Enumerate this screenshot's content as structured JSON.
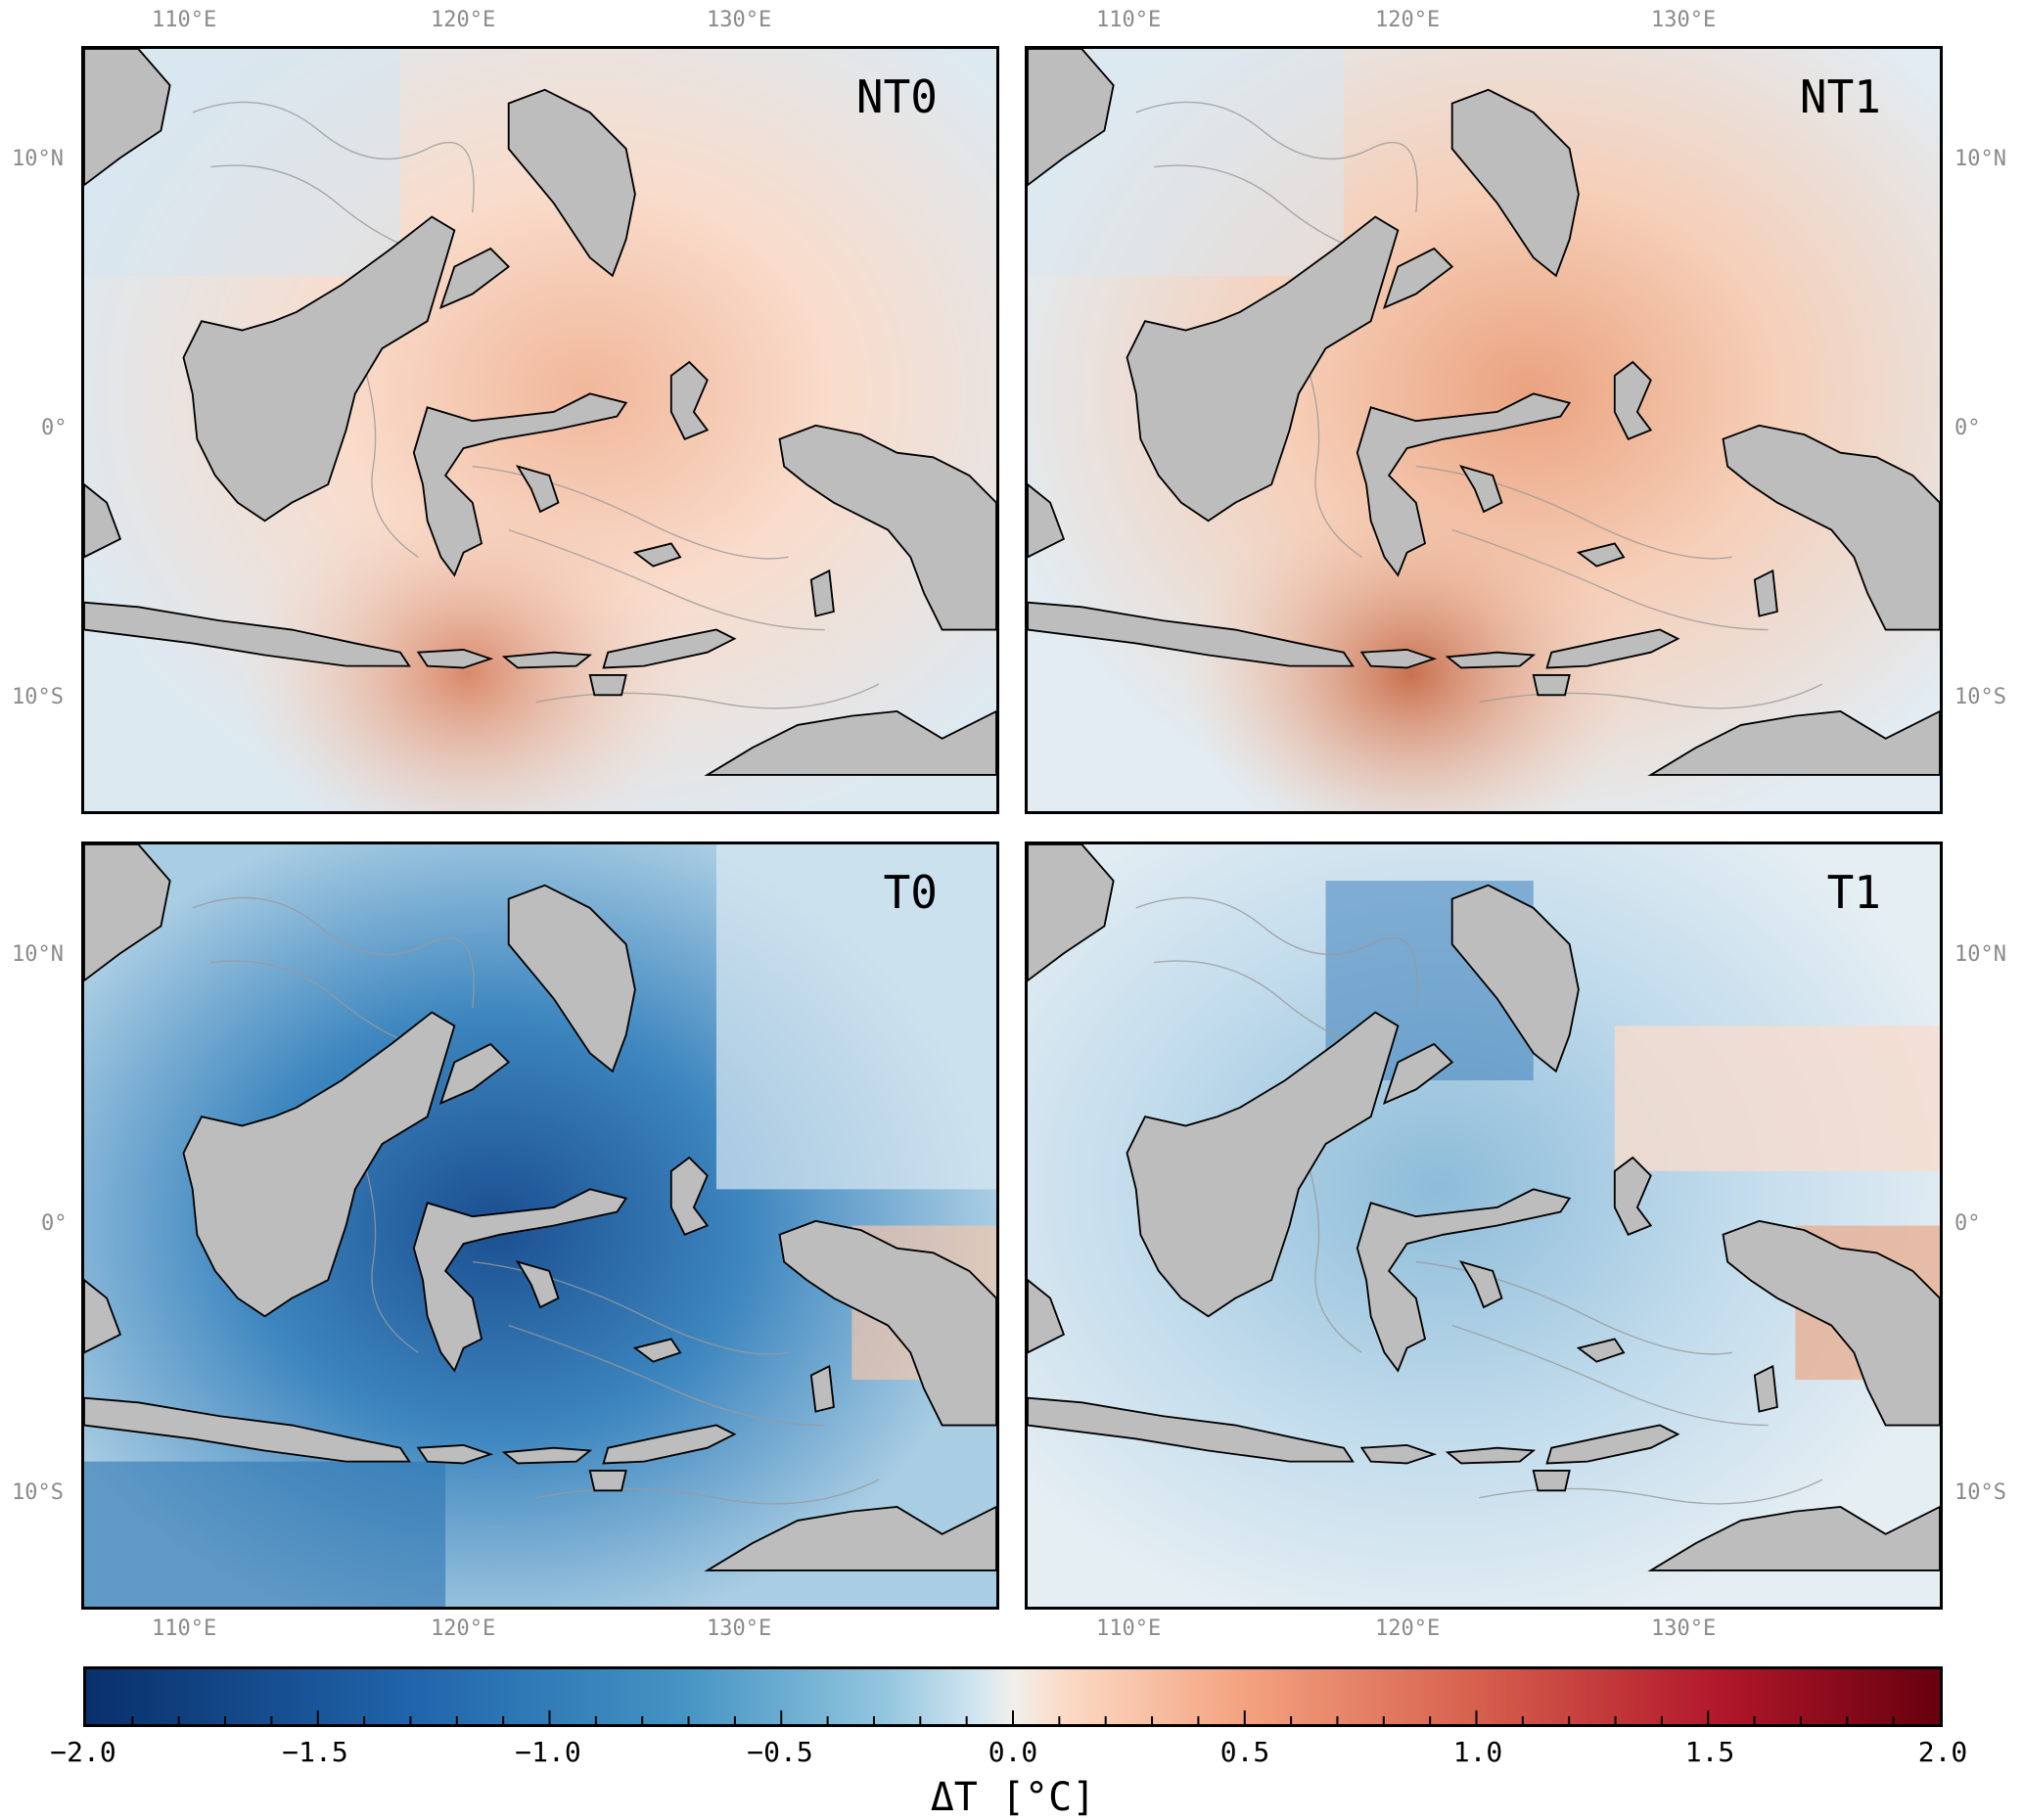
{
  "panels": [
    {
      "label": "NT0",
      "anomaly": "warm"
    },
    {
      "label": "NT1",
      "anomaly": "warm"
    },
    {
      "label": "T0",
      "anomaly": "strong-cool"
    },
    {
      "label": "T1",
      "anomaly": "mild-cool"
    }
  ],
  "axes": {
    "lon_ticks": [
      "110°E",
      "120°E",
      "130°E"
    ],
    "lat_ticks": [
      "10°N",
      "0°",
      "10°S"
    ]
  },
  "colorbar": {
    "title": "ΔT [°C]",
    "min": -2.0,
    "max": 2.0,
    "tick_labels": [
      "−2.0",
      "−1.5",
      "−1.0",
      "−0.5",
      "0.0",
      "0.5",
      "1.0",
      "1.5",
      "2.0"
    ],
    "colormap": "RdBu_r",
    "cold_color": "#08306b",
    "warm_color": "#67000d",
    "neutral_color": "#f2efeb"
  },
  "colors": {
    "land": "#bdbdbd",
    "coastline": "#000000",
    "bathymetry_contour": "#9a9a9a"
  }
}
